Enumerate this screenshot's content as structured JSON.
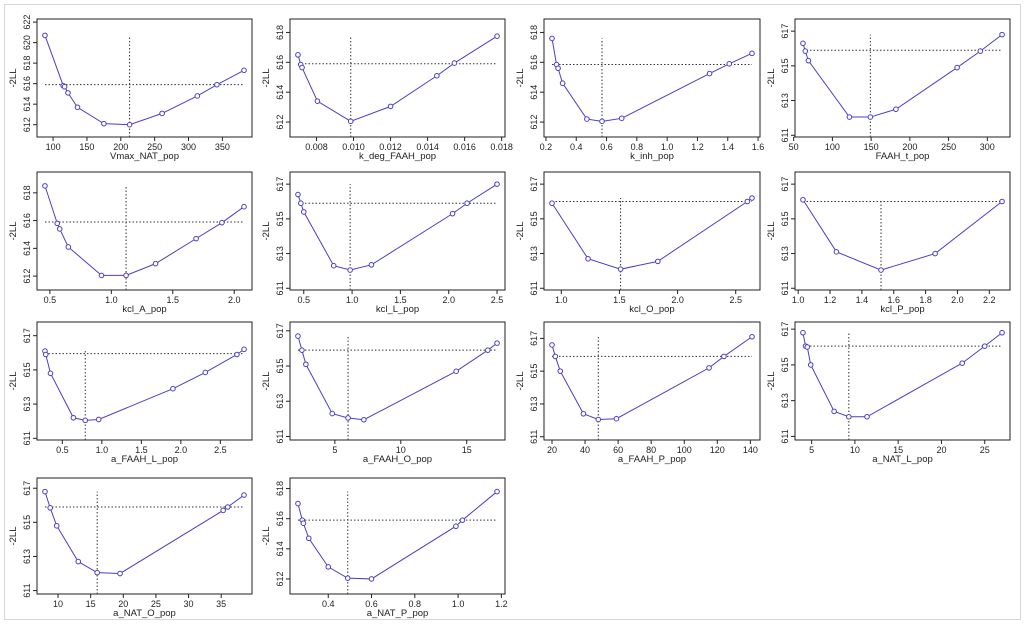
{
  "chart_data": [
    {
      "type": "line",
      "xlabel": "Vmax_NAT_pop",
      "ylabel": "-2LL",
      "ylim": [
        610.8,
        622.3
      ],
      "xticks": [
        "100",
        "150",
        "200",
        "250",
        "300",
        "350"
      ],
      "yticks": [
        "612",
        "614",
        "616",
        "618",
        "620",
        "622"
      ],
      "x": [
        88,
        115,
        117,
        122,
        136,
        175,
        213,
        261,
        313,
        342,
        382
      ],
      "y": [
        620.7,
        615.8,
        615.7,
        615.1,
        613.7,
        612.1,
        612.0,
        613.1,
        614.8,
        615.9,
        617.3
      ],
      "threshold": 615.9,
      "estimate": 213
    },
    {
      "type": "line",
      "xlabel": "k_deg_FAAH_pop",
      "ylabel": "-2LL",
      "ylim": [
        611,
        618.9
      ],
      "xticks": [
        "0.008",
        "0.010",
        "0.012",
        "0.014",
        "0.016",
        "0.018"
      ],
      "yticks": [
        "612",
        "614",
        "616",
        "618"
      ],
      "x": [
        0.007,
        0.00715,
        0.00722,
        0.00805,
        0.00985,
        0.012,
        0.0145,
        0.01545,
        0.01775
      ],
      "y": [
        616.5,
        615.85,
        615.65,
        613.4,
        612.05,
        613.05,
        615.1,
        615.95,
        617.75
      ],
      "threshold": 615.9,
      "estimate": 0.00985
    },
    {
      "type": "line",
      "xlabel": "k_inh_pop",
      "ylabel": "-2LL",
      "ylim": [
        611,
        618.9
      ],
      "xticks": [
        "0.2",
        "0.4",
        "0.6",
        "0.8",
        "1.0",
        "1.2",
        "1.4",
        "1.6"
      ],
      "yticks": [
        "612",
        "614",
        "616",
        "618"
      ],
      "x": [
        0.24,
        0.27,
        0.28,
        0.31,
        0.47,
        0.57,
        0.7,
        1.28,
        1.41,
        1.56
      ],
      "y": [
        617.6,
        615.85,
        615.6,
        614.6,
        612.2,
        612.05,
        612.25,
        615.25,
        615.9,
        616.6
      ],
      "threshold": 615.85,
      "estimate": 0.57
    },
    {
      "type": "line",
      "xlabel": "FAAH_t_pop",
      "ylabel": "-2LL",
      "ylim": [
        610.9,
        617.7
      ],
      "xticks": [
        "50",
        "100",
        "150",
        "200",
        "250",
        "300"
      ],
      "yticks": [
        "611",
        "613",
        "615",
        "617"
      ],
      "x": [
        62,
        65,
        69,
        122,
        149,
        182,
        261,
        291,
        319
      ],
      "y": [
        616.3,
        615.85,
        615.3,
        612.05,
        612.05,
        612.5,
        614.9,
        615.85,
        616.8
      ],
      "threshold": 615.9,
      "estimate": 149
    },
    {
      "type": "line",
      "xlabel": "kcl_A_pop",
      "ylabel": "-2LL",
      "ylim": [
        611,
        619.5
      ],
      "xticks": [
        "0.5",
        "1.0",
        "1.5",
        "2.0"
      ],
      "yticks": [
        "612",
        "614",
        "616",
        "618"
      ],
      "x": [
        0.46,
        0.56,
        0.58,
        0.65,
        0.92,
        1.12,
        1.36,
        1.69,
        1.9,
        2.08
      ],
      "y": [
        618.5,
        615.8,
        615.4,
        614.1,
        612.05,
        612.05,
        612.9,
        614.7,
        615.85,
        617.0
      ],
      "threshold": 615.9,
      "estimate": 1.12
    },
    {
      "type": "line",
      "xlabel": "kcl_L_pop",
      "ylabel": "-2LL",
      "ylim": [
        610.9,
        617.7
      ],
      "xticks": [
        "0.5",
        "1.0",
        "1.5",
        "2.0",
        "2.5"
      ],
      "yticks": [
        "611",
        "613",
        "615",
        "617"
      ],
      "x": [
        0.44,
        0.47,
        0.5,
        0.81,
        0.98,
        1.2,
        2.04,
        2.19,
        2.5
      ],
      "y": [
        616.4,
        615.9,
        615.4,
        612.3,
        612.05,
        612.35,
        615.3,
        615.9,
        617.0
      ],
      "threshold": 615.9,
      "estimate": 0.98
    },
    {
      "type": "line",
      "xlabel": "kcl_O_pop",
      "ylabel": "-2LL",
      "ylim": [
        610.9,
        617.7
      ],
      "xticks": [
        "1.0",
        "1.5",
        "2.0",
        "2.5"
      ],
      "yticks": [
        "611",
        "613",
        "615",
        "617"
      ],
      "x": [
        0.92,
        1.23,
        1.51,
        1.83,
        2.6,
        2.64
      ],
      "y": [
        615.9,
        612.7,
        612.1,
        612.55,
        616.0,
        616.2
      ],
      "threshold": 616.0,
      "estimate": 1.51
    },
    {
      "type": "line",
      "xlabel": "kcl_P_pop",
      "ylabel": "-2LL",
      "ylim": [
        610.9,
        617.7
      ],
      "xticks": [
        "1.0",
        "1.2",
        "1.4",
        "1.6",
        "1.8",
        "2.0",
        "2.2"
      ],
      "yticks": [
        "611",
        "613",
        "615",
        "617"
      ],
      "x": [
        1.03,
        1.24,
        1.52,
        1.86,
        2.28
      ],
      "y": [
        616.1,
        613.1,
        612.05,
        613.0,
        616.0
      ],
      "threshold": 616.0,
      "estimate": 1.52
    },
    {
      "type": "line",
      "xlabel": "a_FAAH_L_pop",
      "ylabel": "-2LL",
      "ylim": [
        610.9,
        617.8
      ],
      "xticks": [
        "0.5",
        "1.0",
        "1.5",
        "2.0",
        "2.5"
      ],
      "yticks": [
        "611",
        "613",
        "615",
        "617"
      ],
      "x": [
        0.28,
        0.29,
        0.35,
        0.64,
        0.79,
        0.96,
        1.9,
        2.31,
        2.71,
        2.8
      ],
      "y": [
        616.1,
        615.9,
        614.8,
        612.2,
        612.05,
        612.1,
        613.9,
        614.85,
        615.9,
        616.2
      ],
      "threshold": 615.95,
      "estimate": 0.79
    },
    {
      "type": "line",
      "xlabel": "a_FAAH_O_pop",
      "ylabel": "-2LL",
      "ylim": [
        610.8,
        617.5
      ],
      "xticks": [
        "5",
        "10",
        "15"
      ],
      "yticks": [
        "611",
        "613",
        "615",
        "617"
      ],
      "x": [
        2.2,
        2.5,
        2.8,
        4.8,
        6.0,
        7.2,
        14.2,
        16.6,
        17.3
      ],
      "y": [
        616.7,
        615.9,
        615.1,
        612.3,
        612.05,
        611.95,
        614.7,
        615.9,
        616.3
      ],
      "threshold": 615.9,
      "estimate": 6.0
    },
    {
      "type": "line",
      "xlabel": "a_FAAH_P_pop",
      "ylabel": "-2LL",
      "ylim": [
        610.8,
        618
      ],
      "xticks": [
        "20",
        "40",
        "60",
        "80",
        "100",
        "120",
        "140"
      ],
      "yticks": [
        "611",
        "613",
        "615",
        "617"
      ],
      "x": [
        20,
        22,
        25,
        39,
        48,
        59,
        115,
        124,
        141
      ],
      "y": [
        616.6,
        615.9,
        615.0,
        612.4,
        612.05,
        612.1,
        615.2,
        615.9,
        617.1
      ],
      "threshold": 615.9,
      "estimate": 48
    },
    {
      "type": "line",
      "xlabel": "a_NAT_L_pop",
      "ylabel": "-2LL",
      "ylim": [
        610.8,
        617.4
      ],
      "xticks": [
        "5",
        "10",
        "15",
        "20",
        "25"
      ],
      "yticks": [
        "611",
        "613",
        "615",
        "617"
      ],
      "x": [
        4.0,
        4.3,
        4.5,
        4.9,
        7.6,
        9.3,
        11.4,
        22.4,
        25.0,
        27.0
      ],
      "y": [
        616.8,
        616.05,
        616.0,
        615.0,
        612.4,
        612.1,
        612.1,
        615.1,
        616.05,
        616.8
      ],
      "threshold": 616.05,
      "estimate": 9.3
    },
    {
      "type": "line",
      "xlabel": "a_NAT_O_pop",
      "ylabel": "-2LL",
      "ylim": [
        610.8,
        617.6
      ],
      "xticks": [
        "10",
        "15",
        "20",
        "25",
        "30",
        "35"
      ],
      "yticks": [
        "611",
        "613",
        "615",
        "617"
      ],
      "x": [
        8.0,
        8.8,
        9.8,
        13.1,
        16.0,
        19.5,
        35.3,
        36.0,
        38.5
      ],
      "y": [
        616.8,
        615.85,
        614.8,
        612.7,
        612.05,
        612.0,
        615.7,
        615.9,
        616.6
      ],
      "threshold": 615.9,
      "estimate": 16.0
    },
    {
      "type": "line",
      "xlabel": "a_NAT_P_pop",
      "ylabel": "-2LL",
      "ylim": [
        611,
        618.7
      ],
      "xticks": [
        "0.4",
        "0.6",
        "0.8",
        "1.0",
        "1.2"
      ],
      "yticks": [
        "612",
        "614",
        "616",
        "618"
      ],
      "x": [
        0.26,
        0.28,
        0.285,
        0.31,
        0.4,
        0.49,
        0.6,
        0.99,
        1.02,
        1.18
      ],
      "y": [
        617.0,
        615.9,
        615.7,
        614.7,
        612.8,
        612.05,
        612.0,
        615.5,
        615.9,
        617.8
      ],
      "threshold": 615.9,
      "estimate": 0.49
    }
  ],
  "colors": {
    "series": "#4b3fc4",
    "axis": "#222222",
    "reference": "#333333"
  }
}
